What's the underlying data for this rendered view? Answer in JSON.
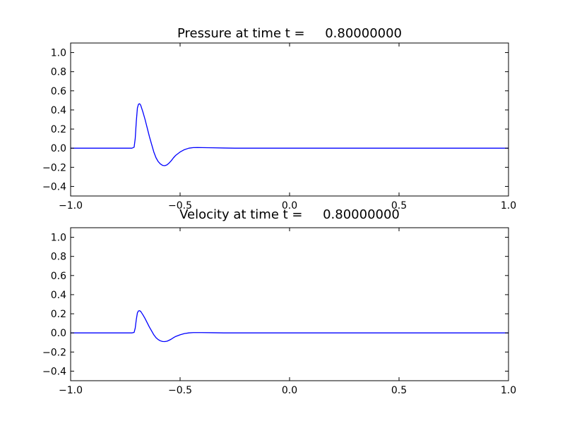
{
  "chart_data": [
    {
      "type": "line",
      "title": "Pressure at time t =     0.80000000",
      "xlim": [
        -1.0,
        1.0
      ],
      "ylim": [
        -0.5,
        1.1
      ],
      "xticks": [
        -1.0,
        -0.5,
        0.0,
        0.5,
        1.0
      ],
      "xtick_labels": [
        "−1.0",
        "−0.5",
        "0.0",
        "0.5",
        "1.0"
      ],
      "yticks": [
        -0.4,
        -0.2,
        0.0,
        0.2,
        0.4,
        0.6,
        0.8,
        1.0
      ],
      "ytick_labels": [
        "−0.4",
        "−0.2",
        "0.0",
        "0.2",
        "0.4",
        "0.6",
        "0.8",
        "1.0"
      ],
      "grid": false,
      "color": "#0000ff",
      "series": [
        {
          "x": [
            -1.0,
            -0.8,
            -0.72,
            -0.71,
            -0.705,
            -0.7,
            -0.695,
            -0.69,
            -0.685,
            -0.68,
            -0.67,
            -0.66,
            -0.65,
            -0.64,
            -0.63,
            -0.62,
            -0.61,
            -0.6,
            -0.59,
            -0.58,
            -0.57,
            -0.56,
            -0.55,
            -0.54,
            -0.53,
            -0.52,
            -0.5,
            -0.48,
            -0.46,
            -0.44,
            -0.42,
            -0.4,
            -0.35,
            -0.3,
            -0.25,
            0.0,
            0.5,
            1.0
          ],
          "y": [
            0.0,
            0.0,
            0.0,
            0.01,
            0.1,
            0.28,
            0.42,
            0.46,
            0.465,
            0.45,
            0.38,
            0.3,
            0.21,
            0.12,
            0.04,
            -0.04,
            -0.1,
            -0.14,
            -0.165,
            -0.18,
            -0.183,
            -0.175,
            -0.155,
            -0.13,
            -0.1,
            -0.075,
            -0.04,
            -0.015,
            0.0,
            0.006,
            0.007,
            0.006,
            0.004,
            0.002,
            0.0,
            0.0,
            0.0,
            0.0
          ]
        }
      ]
    },
    {
      "type": "line",
      "title": "Velocity at time t =     0.80000000",
      "xlim": [
        -1.0,
        1.0
      ],
      "ylim": [
        -0.5,
        1.1
      ],
      "xticks": [
        -1.0,
        -0.5,
        0.0,
        0.5,
        1.0
      ],
      "xtick_labels": [
        "−1.0",
        "−0.5",
        "0.0",
        "0.5",
        "1.0"
      ],
      "yticks": [
        -0.4,
        -0.2,
        0.0,
        0.2,
        0.4,
        0.6,
        0.8,
        1.0
      ],
      "ytick_labels": [
        "−0.4",
        "−0.2",
        "0.0",
        "0.2",
        "0.4",
        "0.6",
        "0.8",
        "1.0"
      ],
      "grid": false,
      "color": "#0000ff",
      "series": [
        {
          "x": [
            -1.0,
            -0.8,
            -0.72,
            -0.71,
            -0.705,
            -0.7,
            -0.695,
            -0.69,
            -0.685,
            -0.68,
            -0.67,
            -0.66,
            -0.65,
            -0.64,
            -0.63,
            -0.62,
            -0.61,
            -0.6,
            -0.59,
            -0.58,
            -0.57,
            -0.56,
            -0.55,
            -0.54,
            -0.53,
            -0.52,
            -0.5,
            -0.48,
            -0.46,
            -0.44,
            -0.42,
            -0.4,
            -0.35,
            -0.3,
            0.0,
            0.5,
            1.0
          ],
          "y": [
            0.0,
            0.0,
            0.0,
            0.005,
            0.05,
            0.14,
            0.21,
            0.23,
            0.232,
            0.225,
            0.19,
            0.15,
            0.105,
            0.06,
            0.02,
            -0.02,
            -0.05,
            -0.07,
            -0.083,
            -0.09,
            -0.091,
            -0.087,
            -0.077,
            -0.065,
            -0.05,
            -0.037,
            -0.02,
            -0.007,
            0.0,
            0.003,
            0.003,
            0.003,
            0.002,
            0.0,
            0.0,
            0.0,
            0.0
          ]
        }
      ]
    }
  ]
}
